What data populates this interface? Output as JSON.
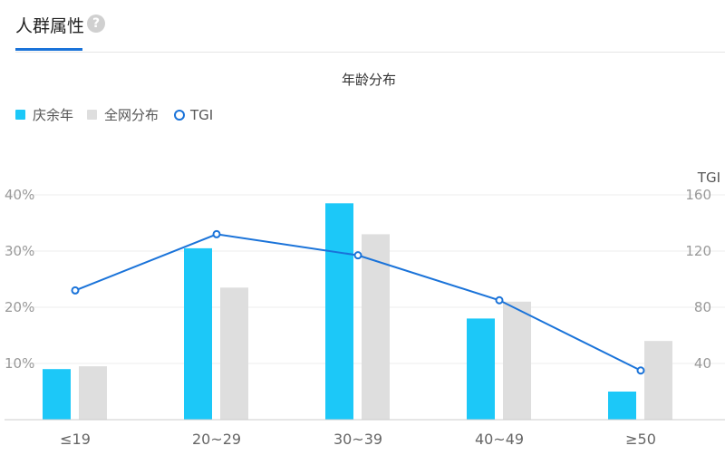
{
  "header": {
    "title": "人群属性",
    "help_icon": "question-circle-icon"
  },
  "chart_data": {
    "type": "bar",
    "title": "年龄分布",
    "categories": [
      "≤19",
      "20~29",
      "30~39",
      "40~49",
      "≥50"
    ],
    "series": [
      {
        "name": "庆余年",
        "type": "bar",
        "color": "#1cc8f8",
        "values": [
          9,
          30.5,
          38.5,
          18,
          5
        ]
      },
      {
        "name": "全网分布",
        "type": "bar",
        "color": "#dedede",
        "values": [
          9.5,
          23.5,
          33,
          21,
          14
        ]
      },
      {
        "name": "TGI",
        "type": "line",
        "color": "#1a73d9",
        "axis": "right",
        "values": [
          92,
          132,
          117,
          85,
          35
        ]
      }
    ],
    "y_left": {
      "ticks": [
        "10%",
        "20%",
        "30%",
        "40%"
      ],
      "tick_values": [
        10,
        20,
        30,
        40
      ],
      "range": [
        0,
        40
      ]
    },
    "y_right": {
      "label": "TGI",
      "ticks": [
        "40",
        "80",
        "120",
        "160"
      ],
      "tick_values": [
        40,
        80,
        120,
        160
      ],
      "range": [
        0,
        160
      ]
    },
    "legend_position": "top-left",
    "grid": true
  }
}
